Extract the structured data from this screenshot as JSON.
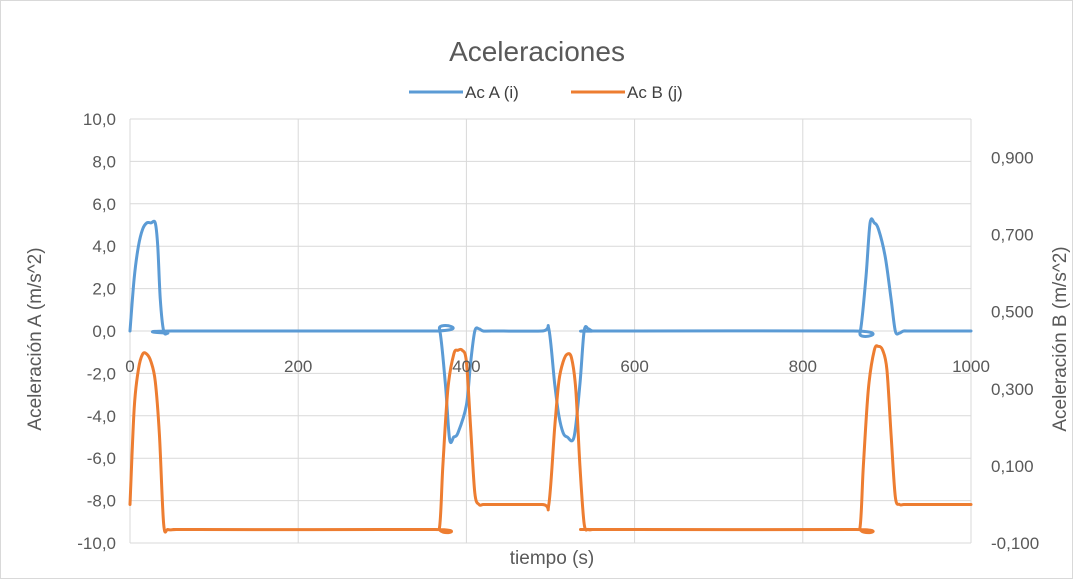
{
  "chart_data": {
    "type": "line",
    "title": "Aceleraciones",
    "xlabel": "tiempo (s)",
    "ylabel": "Aceleración A (m/s^2)",
    "y2label": "Aceleración B (m/s^2)",
    "xlim": [
      0,
      1000
    ],
    "ylim": [
      -10,
      10
    ],
    "y2lim": [
      -0.1,
      1.0
    ],
    "x_ticks": [
      "0",
      "200",
      "400",
      "600",
      "800",
      "1000"
    ],
    "y_ticks": [
      "10,0",
      "8,0",
      "6,0",
      "4,0",
      "2,0",
      "0,0",
      "-2,0",
      "-4,0",
      "-6,0",
      "-8,0",
      "-10,0"
    ],
    "y2_ticks": [
      "0,900",
      "0,700",
      "0,500",
      "0,300",
      "0,100",
      "-0,100"
    ],
    "grid": true,
    "legend": "top",
    "series": [
      {
        "name": "Ac A (i)",
        "axis": "left",
        "color": "#5b9bd5",
        "x": [
          0,
          5,
          10,
          15,
          20,
          25,
          30,
          33,
          36,
          40,
          45,
          50,
          360,
          368,
          375,
          380,
          385,
          390,
          400,
          405,
          410,
          415,
          420,
          430,
          490,
          498,
          505,
          510,
          515,
          520,
          528,
          535,
          540,
          545,
          550,
          560,
          860,
          868,
          875,
          880,
          885,
          890,
          898,
          905,
          910,
          915,
          920,
          930,
          1000
        ],
        "y": [
          0.0,
          2.5,
          4.0,
          4.8,
          5.1,
          5.1,
          5.1,
          4.0,
          1.5,
          0.0,
          -0.1,
          0.0,
          0.0,
          0.1,
          -2.5,
          -5.1,
          -5.0,
          -4.8,
          -3.5,
          -1.5,
          0.0,
          0.1,
          0.0,
          0.0,
          0.0,
          0.1,
          -2.5,
          -4.0,
          -4.8,
          -5.0,
          -5.0,
          -2.5,
          0.0,
          0.1,
          0.0,
          0.0,
          0.0,
          -0.1,
          2.5,
          5.1,
          5.1,
          4.8,
          3.5,
          1.5,
          0.0,
          -0.1,
          0.0,
          0.0,
          0.0
        ]
      },
      {
        "name": "Ac B (j)",
        "axis": "right",
        "color": "#ed7d31",
        "x": [
          0,
          5,
          10,
          15,
          20,
          25,
          30,
          35,
          40,
          45,
          55,
          80,
          360,
          368,
          372,
          378,
          385,
          390,
          395,
          400,
          405,
          410,
          415,
          420,
          430,
          490,
          498,
          505,
          510,
          515,
          520,
          525,
          530,
          535,
          540,
          545,
          550,
          560,
          860,
          868,
          872,
          878,
          885,
          890,
          895,
          900,
          905,
          910,
          915,
          920,
          930,
          1000
        ],
        "y": [
          0.0,
          0.25,
          0.35,
          0.39,
          0.39,
          0.37,
          0.32,
          0.18,
          -0.05,
          -0.065,
          -0.065,
          -0.065,
          -0.065,
          -0.06,
          0.1,
          0.3,
          0.39,
          0.4,
          0.4,
          0.37,
          0.2,
          0.03,
          0.0,
          0.0,
          0.0,
          0.0,
          0.0,
          0.2,
          0.32,
          0.37,
          0.39,
          0.38,
          0.3,
          0.1,
          -0.05,
          -0.065,
          -0.065,
          -0.065,
          -0.065,
          -0.06,
          0.1,
          0.3,
          0.4,
          0.41,
          0.4,
          0.35,
          0.18,
          0.02,
          0.0,
          0.0,
          0.0,
          0.0
        ]
      }
    ]
  }
}
